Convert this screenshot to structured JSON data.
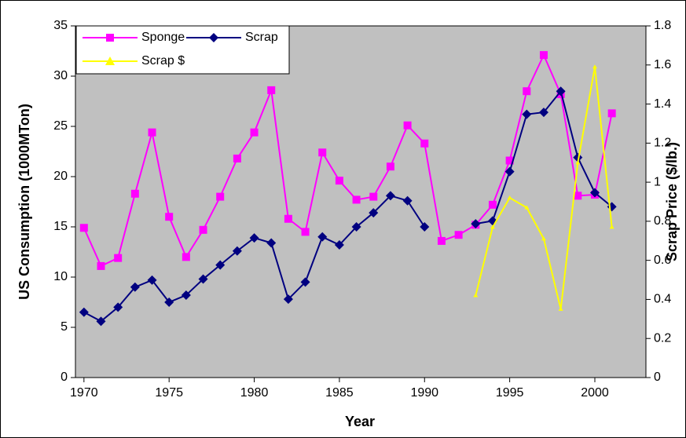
{
  "chart_data": {
    "type": "line",
    "x_label": "Year",
    "y_label": "US Consumption (1000MTon)",
    "y2_label": "Scrap Price ($/lb.)",
    "x": [
      1970,
      1971,
      1972,
      1973,
      1974,
      1975,
      1976,
      1977,
      1978,
      1979,
      1980,
      1981,
      1982,
      1983,
      1984,
      1985,
      1986,
      1987,
      1988,
      1989,
      1990,
      1991,
      1992,
      1993,
      1994,
      1995,
      1996,
      1997,
      1998,
      1999,
      2000,
      2001
    ],
    "series": [
      {
        "name": "Sponge",
        "color": "#ff00ff",
        "marker": "square",
        "values": [
          14.9,
          11.1,
          11.9,
          18.3,
          24.4,
          16.0,
          12.0,
          14.7,
          18.0,
          21.8,
          24.4,
          28.6,
          15.8,
          14.5,
          22.4,
          19.6,
          17.7,
          18.0,
          21.0,
          25.1,
          23.3,
          13.6,
          14.2,
          15.2,
          17.2,
          21.6,
          28.5,
          32.1,
          28.2,
          18.1,
          18.2,
          26.3
        ]
      },
      {
        "name": "Scrap",
        "color": "#000080",
        "marker": "diamond",
        "values": [
          6.5,
          5.6,
          7.0,
          9.0,
          9.7,
          7.5,
          8.2,
          9.8,
          11.2,
          12.6,
          13.9,
          13.4,
          7.8,
          9.5,
          14.0,
          13.2,
          15.0,
          16.4,
          18.1,
          17.6,
          15.0,
          null,
          null,
          15.3,
          15.6,
          20.5,
          26.2,
          26.4,
          28.5,
          21.9,
          18.4,
          17.0
        ]
      },
      {
        "name": "Scrap $",
        "color": "#ffff00",
        "marker": "triangle",
        "axis": "y2",
        "values": [
          null,
          null,
          null,
          null,
          null,
          null,
          null,
          null,
          null,
          null,
          null,
          null,
          null,
          null,
          null,
          null,
          null,
          null,
          null,
          null,
          null,
          null,
          null,
          0.42,
          0.77,
          0.92,
          0.87,
          0.71,
          0.35,
          1.1,
          1.59,
          0.77
        ]
      }
    ],
    "xlim": [
      1969.5,
      2003
    ],
    "xticks": [
      1970,
      1975,
      1980,
      1985,
      1990,
      1995,
      2000
    ],
    "ylim": [
      0,
      35
    ],
    "yticks": [
      0,
      5,
      10,
      15,
      20,
      25,
      30,
      35
    ],
    "y2lim": [
      0,
      1.8
    ],
    "y2ticks": [
      0,
      0.2,
      0.4,
      0.6,
      0.8,
      1,
      1.2,
      1.4,
      1.6,
      1.8
    ],
    "plot_background": "#c0c0c0",
    "legend": "upper left"
  }
}
